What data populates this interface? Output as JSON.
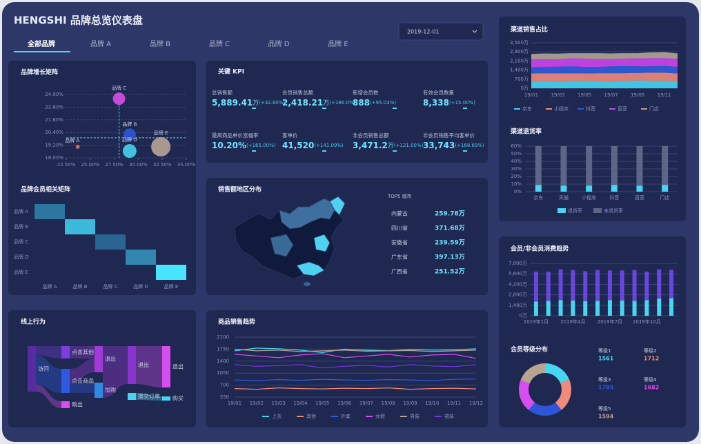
{
  "header": {
    "title": "HENGSHI 品牌总览仪表盘",
    "date": "2019-12-01"
  },
  "tabs": [
    "全部品牌",
    "品牌 A",
    "品牌 B",
    "品牌 C",
    "品牌 D",
    "品牌 E"
  ],
  "kpi": {
    "title": "关键 KPI",
    "items": [
      {
        "label": "总销售额",
        "value": "5,889.41",
        "unit": "万",
        "change": "(+32.60%)"
      },
      {
        "label": "会员销售总额",
        "value": "2,418.21",
        "unit": "万",
        "change": "(+186.0%)"
      },
      {
        "label": "新增会员数",
        "value": "888",
        "change": "(+95.03%)"
      },
      {
        "label": "有效会员数量",
        "value": "8,338",
        "change": "(+15.00%)"
      },
      {
        "label": "最高商品单价涨幅率",
        "value": "10.20%",
        "change": "(+165.00%)"
      },
      {
        "label": "客单价",
        "value": "41,520",
        "change": "(+141.09%)"
      },
      {
        "label": "非会员销售总额",
        "value": "3,471.2",
        "unit": "万",
        "change": "(+121.00%)"
      },
      {
        "label": "非会员销售平均客单价",
        "value": "33,743",
        "change": "(+168.69%)"
      }
    ]
  },
  "region": {
    "title": "销售额地区分布",
    "list_title": "TOP5 城市",
    "rows": [
      {
        "name": "内蒙古",
        "value": "259.78万"
      },
      {
        "name": "四川省",
        "value": "371.68万"
      },
      {
        "name": "安徽省",
        "value": "239.59万"
      },
      {
        "name": "广东省",
        "value": "397.13万"
      },
      {
        "name": "广西省",
        "value": "251.52万"
      }
    ]
  },
  "behavior": {
    "title": "线上行为",
    "nodes": [
      "访问",
      "点击其他",
      "点击商品",
      "跳出",
      "退出",
      "退出",
      "加购",
      "提交订单",
      "退出",
      "购买"
    ]
  },
  "chart_data": [
    {
      "type": "scatter",
      "title": "品牌增长矩阵",
      "grid": true,
      "xlim": [
        22.5,
        35
      ],
      "xticks": [
        {
          "value": 22.5,
          "label": "22.50%"
        },
        {
          "value": 25,
          "label": "25.00%"
        },
        {
          "value": 27.5,
          "label": "27.50%"
        },
        {
          "value": 30,
          "label": "30.00%"
        },
        {
          "value": 32.5,
          "label": "32.50%"
        },
        {
          "value": 35,
          "label": "35.00%"
        }
      ],
      "ylim": [
        18,
        24
      ],
      "yticks": [
        {
          "value": 18,
          "label": "18.00%"
        },
        {
          "value": 19.2,
          "label": "19.20%"
        },
        {
          "value": 20.4,
          "label": "20.40%"
        },
        {
          "value": 21.6,
          "label": "21.60%"
        },
        {
          "value": 22.8,
          "label": "22.80%"
        },
        {
          "value": 24,
          "label": "24.00%"
        }
      ],
      "ref_x": 28,
      "ref_y": 19.9,
      "points": [
        {
          "name": "品牌 C",
          "color": "#d94be8",
          "x": 28,
          "y": 23.6,
          "size": 81
        },
        {
          "name": "品牌 A",
          "color": "#ef6a5a",
          "x": 23.7,
          "y": 19.05,
          "size": 9
        },
        {
          "name": "品牌 B",
          "color": "#2f55d8",
          "x": 29.1,
          "y": 20.2,
          "size": 81
        },
        {
          "name": "品牌 D",
          "color": "#45d3f0",
          "x": 29.1,
          "y": 18.65,
          "size": 100
        },
        {
          "name": "品牌 E",
          "color": "#b7a496",
          "x": 32.35,
          "y": 19.05,
          "size": 196
        }
      ]
    },
    {
      "type": "heatmap",
      "title": "品牌会员相关矩阵",
      "categories": [
        "品牌 A",
        "品牌 B",
        "品牌 C",
        "品牌 D",
        "品牌 E"
      ],
      "colors": [
        "#1f3b6b",
        "#47e3ff"
      ],
      "values": [
        [
          0.35,
          null,
          null,
          null,
          null
        ],
        [
          null,
          0.75,
          null,
          null,
          null
        ],
        [
          null,
          null,
          0.25,
          null,
          null
        ],
        [
          null,
          null,
          null,
          0.45,
          null
        ],
        [
          null,
          null,
          null,
          null,
          1
        ]
      ]
    },
    {
      "type": "line",
      "title": "商品销售趋势",
      "grid": true,
      "categories": [
        "19/01",
        "19/02",
        "19/03",
        "19/04",
        "19/05",
        "19/06",
        "19/07",
        "19/08",
        "19/09",
        "19/10",
        "19/11",
        "19/12"
      ],
      "ylim": [
        350,
        2100
      ],
      "yticks": [
        350,
        700,
        1050,
        1400,
        1750,
        2100
      ],
      "series": [
        {
          "name": "上衣",
          "color": "#46d6f2",
          "values": [
            1700,
            1780,
            1760,
            1720,
            1650,
            1750,
            1720,
            1700,
            1740,
            1720,
            1730,
            1760
          ]
        },
        {
          "name": "其他",
          "color": "#f08a7a",
          "values": [
            600,
            580,
            620,
            600,
            590,
            610,
            600,
            620,
            580,
            600,
            610,
            590
          ]
        },
        {
          "name": "外套",
          "color": "#2f5cdc",
          "values": [
            850,
            830,
            860,
            840,
            870,
            850,
            840,
            860,
            850,
            830,
            870,
            880
          ]
        },
        {
          "name": "女鞋",
          "color": "#d84df0",
          "values": [
            1600,
            1550,
            1500,
            1580,
            1620,
            1500,
            1550,
            1600,
            1520,
            1580,
            1600,
            1480
          ]
        },
        {
          "name": "男装",
          "color": "#b3a394",
          "values": [
            1750,
            1700,
            1720,
            1680,
            1700,
            1720,
            1690,
            1700,
            1710,
            1680,
            1700,
            1720
          ]
        },
        {
          "name": "裙装",
          "color": "#7a35e8",
          "values": [
            1300,
            1250,
            1270,
            1300,
            1200,
            1250,
            1280,
            1230,
            1300,
            1260,
            1240,
            1300
          ]
        }
      ]
    },
    {
      "type": "area",
      "title": "渠道销售占比",
      "grid": true,
      "stacked": true,
      "categories": [
        "19/01",
        null,
        "19/03",
        null,
        "19/05",
        null,
        "19/07",
        null,
        "19/09",
        null,
        "19/11",
        null
      ],
      "ylim": [
        0,
        3500
      ],
      "yticks": [
        {
          "value": 0,
          "label": "0万"
        },
        {
          "value": 700,
          "label": "700万"
        },
        {
          "value": 1400,
          "label": "1,400万"
        },
        {
          "value": 2100,
          "label": "2,100万"
        },
        {
          "value": 2800,
          "label": "2,800万"
        },
        {
          "value": 3500,
          "label": "3,500万"
        }
      ],
      "series": [
        {
          "name": "京东",
          "color": "#46d6f2",
          "values": [
            520,
            540,
            500,
            560,
            580,
            540,
            520,
            560,
            600,
            580,
            560,
            540
          ]
        },
        {
          "name": "小程序",
          "color": "#f08a7a",
          "values": [
            620,
            600,
            640,
            580,
            560,
            620,
            640,
            600,
            580,
            620,
            640,
            600
          ]
        },
        {
          "name": "抖音",
          "color": "#2f5cdc",
          "values": [
            480,
            500,
            520,
            540,
            500,
            480,
            520,
            540,
            500,
            480,
            520,
            500
          ]
        },
        {
          "name": "直营",
          "color": "#cc45ee",
          "values": [
            600,
            580,
            560,
            620,
            640,
            600,
            560,
            580,
            620,
            640,
            600,
            620
          ]
        },
        {
          "name": "门店",
          "color": "#b3a394",
          "values": [
            420,
            460,
            440,
            400,
            420,
            460,
            440,
            420,
            400,
            440,
            460,
            420
          ]
        }
      ]
    },
    {
      "type": "bar",
      "title": "渠道退货率",
      "grid": true,
      "stacked": true,
      "categories": [
        "京东",
        "天猫",
        "小程序",
        "抖音",
        "直营",
        "门店"
      ],
      "ylim": [
        0,
        60
      ],
      "yticks": [
        {
          "value": 0,
          "label": "0%"
        },
        {
          "value": 10,
          "label": "10%"
        },
        {
          "value": 20,
          "label": "20%"
        },
        {
          "value": 30,
          "label": "30%"
        },
        {
          "value": 40,
          "label": "40%"
        },
        {
          "value": 50,
          "label": "50%"
        },
        {
          "value": 60,
          "label": "60%"
        }
      ],
      "series": [
        {
          "name": "退货率",
          "color": "#46d6f2",
          "values": [
            9,
            8,
            8,
            9,
            8,
            9
          ]
        },
        {
          "name": "未退货率",
          "color": "#5d6688",
          "values": [
            51,
            52,
            52,
            51,
            52,
            51
          ]
        }
      ]
    },
    {
      "type": "bar",
      "title": "会员/非会员消费趋势",
      "grid": true,
      "stacked": true,
      "categories": [
        "2019年1月",
        null,
        null,
        "2019年4月",
        null,
        null,
        "2019年7月",
        null,
        null,
        "2019年10月",
        null,
        null
      ],
      "ylim": [
        0,
        7000
      ],
      "yticks": [
        {
          "value": 0,
          "label": "0万"
        },
        {
          "value": 1400,
          "label": "1,400万"
        },
        {
          "value": 2800,
          "label": "2,800万"
        },
        {
          "value": 4200,
          "label": "4,200万"
        },
        {
          "value": 5600,
          "label": "5,600万"
        },
        {
          "value": 7000,
          "label": "7,000万"
        }
      ],
      "series": [
        {
          "color": "#46d6f2",
          "values": [
            1900,
            2000,
            2100,
            2050,
            1950,
            2000,
            2100,
            2050,
            2000,
            2100,
            2300,
            2350
          ]
        },
        {
          "color": "#6a45e0",
          "values": [
            4000,
            3900,
            4100,
            4050,
            4000,
            4100,
            3950,
            4000,
            4100,
            3800,
            3900,
            3800
          ]
        }
      ]
    },
    {
      "type": "pie",
      "title": "会员等级分布",
      "donut": true,
      "categories": [
        "等级1",
        "等级2",
        "等级3",
        "等级4",
        "等级5"
      ],
      "values": [
        1561,
        1712,
        1789,
        1682,
        1594
      ],
      "colors": [
        "#46d6f2",
        "#f08a7a",
        "#2f55d8",
        "#d84df0",
        "#b8a48f"
      ]
    }
  ]
}
